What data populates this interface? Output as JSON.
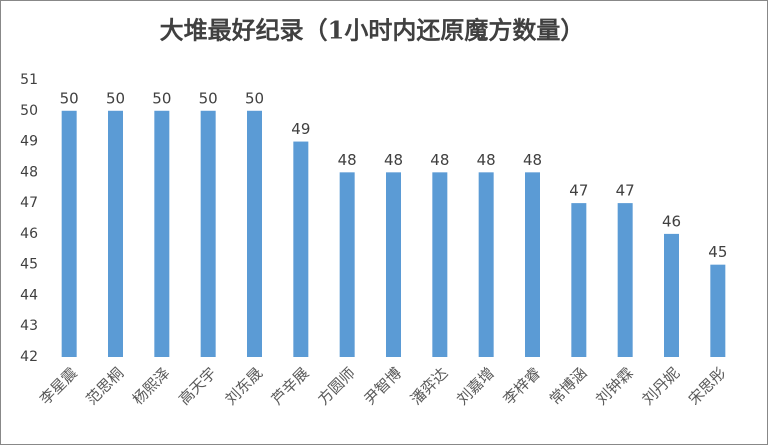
{
  "chart_data": {
    "type": "bar",
    "title": "大堆最好纪录（1小时内还原魔方数量）",
    "categories": [
      "李星震",
      "范思桐",
      "杨熙泽",
      "高天宇",
      "刘东晟",
      "芦辛展",
      "方圆师",
      "尹智博",
      "潘弈达",
      "刘嘉增",
      "李梓睿",
      "常博涵",
      "刘钟霖",
      "刘丹妮",
      "宋思彤"
    ],
    "values": [
      50,
      50,
      50,
      50,
      50,
      49,
      48,
      48,
      48,
      48,
      48,
      47,
      47,
      46,
      45
    ],
    "color": "#5b9bd5",
    "ylim": [
      42,
      51
    ],
    "yticks": [
      42,
      43,
      44,
      45,
      46,
      47,
      48,
      49,
      50,
      51
    ],
    "grid": false
  }
}
